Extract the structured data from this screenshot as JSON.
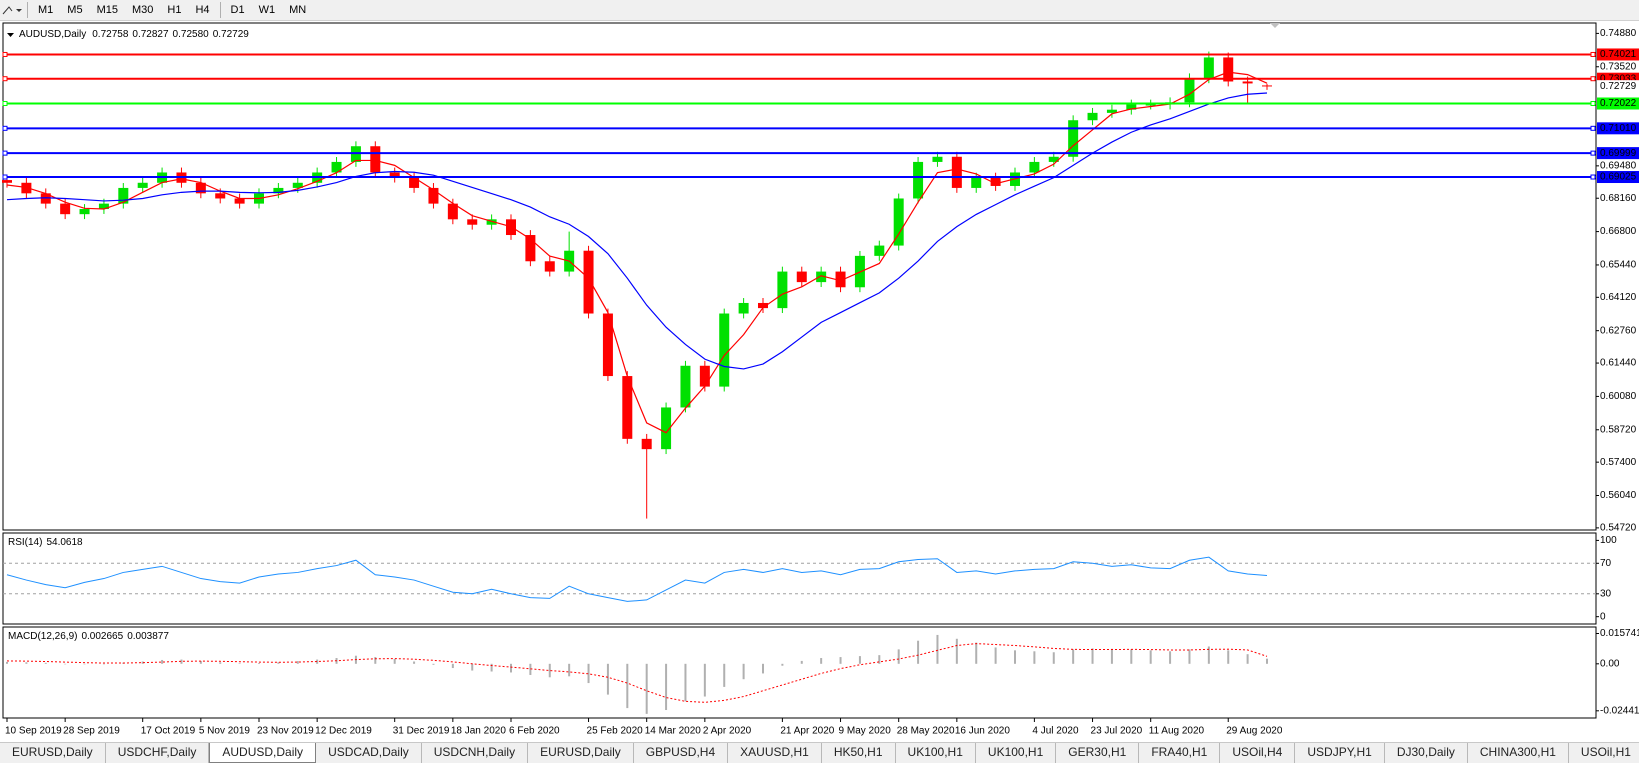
{
  "toolbar": {
    "timeframes": [
      "M1",
      "M5",
      "M15",
      "M30",
      "H1",
      "H4",
      "D1",
      "W1",
      "MN"
    ]
  },
  "tabs": {
    "items": [
      "EURUSD,Daily",
      "USDCHF,Daily",
      "AUDUSD,Daily",
      "USDCAD,Daily",
      "USDCNH,Daily",
      "EURUSD,Daily",
      "GBPUSD,H4",
      "XAUUSD,H1",
      "HK50,H1",
      "UK100,H1",
      "UK100,H1",
      "GER30,H1",
      "FRA40,H1",
      "USOil,H4",
      "USDJPY,H1",
      "DJ30,Daily",
      "CHINA300,H1",
      "USOil,H1"
    ],
    "active": 2
  },
  "chart_data": [
    {
      "type": "candlestick",
      "title": "AUDUSD,Daily",
      "header_ohlc": [
        "0.72758",
        "0.72827",
        "0.72580",
        "0.72729"
      ],
      "categories": [
        "10 Sep 2019",
        null,
        null,
        "28 Sep 2019",
        null,
        null,
        null,
        "17 Oct 2019",
        null,
        null,
        "5 Nov 2019",
        null,
        null,
        "23 Nov 2019",
        null,
        null,
        "12 Dec 2019",
        null,
        null,
        null,
        "31 Dec 2019",
        null,
        null,
        "18 Jan 2020",
        null,
        null,
        "6 Feb 2020",
        null,
        null,
        null,
        "25 Feb 2020",
        null,
        null,
        "14 Mar 2020",
        null,
        null,
        "2 Apr 2020",
        null,
        null,
        null,
        "21 Apr 2020",
        null,
        null,
        "9 May 2020",
        null,
        null,
        "28 May 2020",
        null,
        null,
        "16 Jun 2020",
        null,
        null,
        null,
        "4 Jul 2020",
        null,
        null,
        "23 Jul 2020",
        null,
        null,
        "11 Aug 2020",
        null,
        null,
        null,
        "29 Aug 2020",
        null,
        null
      ],
      "open": [
        0.689,
        0.6879,
        0.6836,
        0.6794,
        0.6751,
        0.6772,
        0.6794,
        0.6858,
        0.6879,
        0.6921,
        0.6879,
        0.6836,
        0.6815,
        0.6794,
        0.6836,
        0.6858,
        0.6879,
        0.6921,
        0.6964,
        0.7028,
        0.6921,
        0.69,
        0.6858,
        0.6794,
        0.673,
        0.6708,
        0.673,
        0.6666,
        0.6559,
        0.6517,
        0.6602,
        0.6346,
        0.6091,
        0.5835,
        0.5793,
        0.5963,
        0.6133,
        0.6048,
        0.6346,
        0.6389,
        0.6368,
        0.6517,
        0.6474,
        0.6517,
        0.6453,
        0.6581,
        0.6623,
        0.6815,
        0.6964,
        0.6985,
        0.6858,
        0.69,
        0.6866,
        0.6921,
        0.6964,
        0.6985,
        0.7134,
        0.7164,
        0.7177,
        0.7198,
        0.7198,
        0.7207,
        0.7305,
        0.739,
        0.7292,
        0.72758
      ],
      "high": [
        0.691,
        0.6899,
        0.6856,
        0.6814,
        0.6792,
        0.6814,
        0.6878,
        0.6899,
        0.6941,
        0.6941,
        0.6899,
        0.6856,
        0.6835,
        0.6856,
        0.6878,
        0.6899,
        0.6941,
        0.6984,
        0.7048,
        0.7048,
        0.6941,
        0.692,
        0.6878,
        0.6814,
        0.675,
        0.675,
        0.675,
        0.6686,
        0.6579,
        0.668,
        0.6622,
        0.6366,
        0.6111,
        0.5855,
        0.5983,
        0.6153,
        0.6153,
        0.6366,
        0.6409,
        0.6409,
        0.6537,
        0.6537,
        0.6537,
        0.6537,
        0.6601,
        0.6643,
        0.6835,
        0.6984,
        0.7005,
        0.7005,
        0.692,
        0.692,
        0.6941,
        0.6984,
        0.7005,
        0.7154,
        0.7184,
        0.7197,
        0.7218,
        0.7218,
        0.7227,
        0.7325,
        0.7414,
        0.741,
        0.7312,
        0.72827
      ],
      "low": [
        0.6859,
        0.6816,
        0.6774,
        0.6731,
        0.6731,
        0.6752,
        0.6774,
        0.6838,
        0.6859,
        0.6859,
        0.6816,
        0.6795,
        0.6774,
        0.6774,
        0.6816,
        0.6838,
        0.6859,
        0.6901,
        0.6944,
        0.6901,
        0.688,
        0.6838,
        0.6774,
        0.671,
        0.6688,
        0.6688,
        0.6646,
        0.6539,
        0.6497,
        0.6497,
        0.6326,
        0.6071,
        0.5815,
        0.551,
        0.5773,
        0.5943,
        0.6028,
        0.6028,
        0.6326,
        0.6348,
        0.6348,
        0.6454,
        0.6454,
        0.6433,
        0.6433,
        0.6561,
        0.6603,
        0.6795,
        0.6944,
        0.6838,
        0.6838,
        0.6846,
        0.6846,
        0.6901,
        0.6944,
        0.6965,
        0.7114,
        0.7144,
        0.7157,
        0.7178,
        0.7178,
        0.7187,
        0.7285,
        0.7272,
        0.72,
        0.7258
      ],
      "close": [
        0.6879,
        0.6836,
        0.6794,
        0.6751,
        0.6772,
        0.6794,
        0.6858,
        0.6879,
        0.6921,
        0.6879,
        0.6836,
        0.6815,
        0.6794,
        0.6836,
        0.6858,
        0.6879,
        0.6921,
        0.6964,
        0.7028,
        0.6921,
        0.69,
        0.6858,
        0.6794,
        0.673,
        0.6708,
        0.673,
        0.6666,
        0.6559,
        0.6517,
        0.6602,
        0.6346,
        0.6091,
        0.5835,
        0.5793,
        0.5963,
        0.6133,
        0.6048,
        0.6346,
        0.6389,
        0.6368,
        0.6517,
        0.6474,
        0.6517,
        0.6453,
        0.6581,
        0.6623,
        0.6815,
        0.6964,
        0.6985,
        0.6858,
        0.69,
        0.6866,
        0.6921,
        0.6964,
        0.6985,
        0.7134,
        0.7164,
        0.7177,
        0.7198,
        0.7198,
        0.7207,
        0.7305,
        0.739,
        0.7292,
        0.7284,
        0.72729
      ],
      "up_color": "#00e000",
      "down_color": "#ff0000",
      "series": [
        {
          "color": "#ff0000",
          "values": [
            0.687,
            0.686,
            0.6835,
            0.68,
            0.6775,
            0.6772,
            0.68,
            0.684,
            0.688,
            0.6895,
            0.688,
            0.6845,
            0.6815,
            0.6815,
            0.683,
            0.6855,
            0.6885,
            0.692,
            0.697,
            0.697,
            0.695,
            0.69,
            0.685,
            0.6795,
            0.6745,
            0.6722,
            0.67,
            0.665,
            0.658,
            0.656,
            0.649,
            0.635,
            0.609,
            0.59,
            0.586,
            0.596,
            0.605,
            0.6175,
            0.626,
            0.637,
            0.6425,
            0.6455,
            0.65,
            0.648,
            0.6515,
            0.655,
            0.667,
            0.68,
            0.692,
            0.6935,
            0.6915,
            0.6875,
            0.6895,
            0.6915,
            0.6955,
            0.703,
            0.7095,
            0.716,
            0.718,
            0.719,
            0.72,
            0.724,
            0.73,
            0.733,
            0.732,
            0.7285
          ]
        },
        {
          "color": "#0000ff",
          "values": [
            0.681,
            0.6815,
            0.6818,
            0.6815,
            0.681,
            0.6805,
            0.6808,
            0.6815,
            0.683,
            0.684,
            0.6845,
            0.6845,
            0.684,
            0.6838,
            0.684,
            0.6848,
            0.6862,
            0.688,
            0.6905,
            0.692,
            0.6925,
            0.6922,
            0.691,
            0.6885,
            0.686,
            0.6835,
            0.681,
            0.678,
            0.674,
            0.671,
            0.666,
            0.659,
            0.649,
            0.638,
            0.629,
            0.622,
            0.616,
            0.613,
            0.612,
            0.614,
            0.619,
            0.625,
            0.631,
            0.635,
            0.639,
            0.643,
            0.649,
            0.656,
            0.664,
            0.67,
            0.675,
            0.679,
            0.683,
            0.6865,
            0.69,
            0.695,
            0.7,
            0.7045,
            0.7085,
            0.7115,
            0.714,
            0.717,
            0.72,
            0.7225,
            0.724,
            0.7245
          ]
        }
      ],
      "levels": [
        {
          "value": 0.74021,
          "label": "0.74021",
          "color": "#ff0000"
        },
        {
          "value": 0.73033,
          "label": "0.73033",
          "color": "#ff0000"
        },
        {
          "value": 0.72022,
          "label": "0.72022",
          "color": "#00ff00"
        },
        {
          "value": 0.7101,
          "label": "0.71010",
          "color": "#0000ff"
        },
        {
          "value": 0.69999,
          "label": "0.69999",
          "color": "#0000ff"
        },
        {
          "value": 0.69025,
          "label": "0.69025",
          "color": "#0000ff"
        }
      ],
      "last_price": {
        "value": 0.72729,
        "label": "0.72729"
      },
      "ylim": [
        0.54634,
        0.75304
      ],
      "yticks": [
        {
          "value": 0.7488,
          "label": "0.74880"
        },
        {
          "value": 0.7352,
          "label": "0.73520"
        },
        {
          "value": 0.6948,
          "label": "0.69480"
        },
        {
          "value": 0.6816,
          "label": "0.68160"
        },
        {
          "value": 0.668,
          "label": "0.66800"
        },
        {
          "value": 0.6544,
          "label": "0.65440"
        },
        {
          "value": 0.6412,
          "label": "0.64120"
        },
        {
          "value": 0.6276,
          "label": "0.62760"
        },
        {
          "value": 0.6144,
          "label": "0.61440"
        },
        {
          "value": 0.6008,
          "label": "0.60080"
        },
        {
          "value": 0.5872,
          "label": "0.58720"
        },
        {
          "value": 0.574,
          "label": "0.57400"
        },
        {
          "value": 0.5604,
          "label": "0.56040"
        },
        {
          "value": 0.5472,
          "label": "0.54720"
        }
      ]
    },
    {
      "type": "line",
      "title": "RSI(14)",
      "series": [
        {
          "color": "#1e90ff",
          "values": [
            55,
            48,
            42,
            38,
            45,
            50,
            58,
            62,
            66,
            58,
            50,
            46,
            44,
            52,
            56,
            58,
            63,
            67,
            74,
            55,
            52,
            48,
            40,
            32,
            30,
            36,
            30,
            25,
            24,
            40,
            30,
            25,
            20,
            22,
            35,
            48,
            44,
            58,
            62,
            58,
            63,
            58,
            60,
            55,
            62,
            63,
            72,
            75,
            76,
            58,
            60,
            56,
            60,
            62,
            63,
            72,
            70,
            66,
            68,
            64,
            63,
            74,
            78,
            60,
            56,
            54.0618
          ]
        }
      ],
      "ylim": [
        -9.6,
        109.7
      ],
      "yticks": [
        0,
        30,
        70,
        100
      ],
      "levels": [
        30,
        70
      ]
    },
    {
      "type": "macd",
      "title": "MACD(12,26,9)",
      "series": [
        {
          "color": "#b0b0b0",
          "values": [
            0.001,
            0.0008,
            0.0005,
            0.0,
            -0.0002,
            0.0,
            0.0006,
            0.0012,
            0.002,
            0.0022,
            0.0015,
            0.0008,
            0.0003,
            0.0004,
            0.0008,
            0.0014,
            0.0022,
            0.003,
            0.0042,
            0.0035,
            0.0025,
            0.0012,
            -0.0005,
            -0.0022,
            -0.0035,
            -0.004,
            -0.0045,
            -0.0058,
            -0.007,
            -0.0065,
            -0.01,
            -0.016,
            -0.023,
            -0.026,
            -0.024,
            -0.0195,
            -0.017,
            -0.012,
            -0.008,
            -0.005,
            -0.001,
            0.0015,
            0.003,
            0.0035,
            0.004,
            0.0045,
            0.0075,
            0.012,
            0.015,
            0.013,
            0.011,
            0.0085,
            0.007,
            0.0065,
            0.006,
            0.0075,
            0.008,
            0.0078,
            0.0075,
            0.007,
            0.0065,
            0.0075,
            0.009,
            0.007,
            0.005,
            0.002665
          ]
        },
        {
          "color": "#ff0000",
          "values": [
            0.0015,
            0.0014,
            0.0012,
            0.0009,
            0.0006,
            0.0004,
            0.0004,
            0.0006,
            0.0009,
            0.0013,
            0.0014,
            0.0013,
            0.0011,
            0.0009,
            0.0008,
            0.0009,
            0.0012,
            0.0016,
            0.0022,
            0.0026,
            0.0027,
            0.0024,
            0.0018,
            0.001,
            0.0,
            -0.0009,
            -0.0017,
            -0.0026,
            -0.0035,
            -0.0042,
            -0.0052,
            -0.007,
            -0.01,
            -0.014,
            -0.0175,
            -0.0195,
            -0.02,
            -0.019,
            -0.017,
            -0.014,
            -0.011,
            -0.008,
            -0.005,
            -0.0025,
            -0.0005,
            0.001,
            0.0025,
            0.0045,
            0.007,
            0.0095,
            0.0105,
            0.01,
            0.0095,
            0.0088,
            0.008,
            0.0075,
            0.0074,
            0.0074,
            0.0075,
            0.0074,
            0.0072,
            0.0072,
            0.0075,
            0.0076,
            0.0072,
            0.003877
          ]
        }
      ],
      "ylim": [
        -0.02815,
        0.01912
      ],
      "yticks": [
        {
          "value": 0.015741,
          "label": "0.015741"
        },
        {
          "value": 0,
          "label": "0.00"
        },
        {
          "value": -0.024412,
          "label": "-0.024412"
        }
      ]
    }
  ]
}
